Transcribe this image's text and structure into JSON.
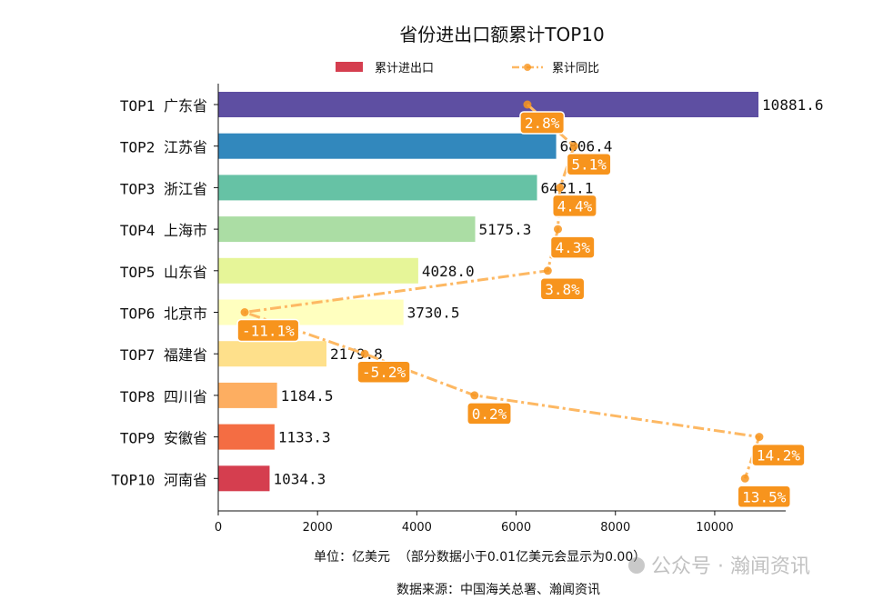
{
  "chart_data": {
    "type": "bar",
    "orientation": "horizontal",
    "title": "省份进出口额累计TOP10",
    "categories": [
      "TOP1 广东省",
      "TOP2 江苏省",
      "TOP3 浙江省",
      "TOP4 上海市",
      "TOP5 山东省",
      "TOP6 北京市",
      "TOP7 福建省",
      "TOP8 四川省",
      "TOP9 安徽省",
      "TOP10 河南省"
    ],
    "series": [
      {
        "name": "累计进出口",
        "type": "bar",
        "values": [
          10881.6,
          6806.4,
          6421.1,
          5175.3,
          4028.0,
          3730.5,
          2179.8,
          1184.5,
          1133.3,
          1034.3
        ],
        "labels": [
          "10881.6",
          "6806.4",
          "6421.1",
          "5175.3",
          "4028.0",
          "3730.5",
          "2179.8",
          "1184.5",
          "1133.3",
          "1034.3"
        ],
        "colors": [
          "#5e4fa2",
          "#3288bd",
          "#66c2a5",
          "#abdda4",
          "#e6f598",
          "#ffffbf",
          "#fee08b",
          "#fdae61",
          "#f46d43",
          "#d53e4f"
        ]
      },
      {
        "name": "累计同比",
        "type": "line",
        "unit": "%",
        "values": [
          2.8,
          5.1,
          4.4,
          4.3,
          3.8,
          -11.1,
          -5.2,
          0.2,
          14.2,
          13.5
        ],
        "labels": [
          "2.8%",
          "5.1%",
          "4.4%",
          "4.3%",
          "3.8%",
          "-11.1%",
          "-5.2%",
          "0.2%",
          "14.2%",
          "13.5%"
        ],
        "color": "#fdb863",
        "label_color": "#f7941d",
        "secondary_axis_hidden": true,
        "secondary_range": [
          -12.4,
          15.5
        ]
      }
    ],
    "xlim": [
      0,
      11430
    ],
    "xticks": [
      "0",
      "2000",
      "4000",
      "6000",
      "8000",
      "10000"
    ],
    "xlabel": "单位：亿美元  （部分数据小于0.01亿美元会显示为0.00）",
    "source": "数据来源：中国海关总署、瀚闻资讯",
    "legend_position": "top",
    "grid": false
  },
  "watermark": "公众号 · 瀚闻资讯"
}
